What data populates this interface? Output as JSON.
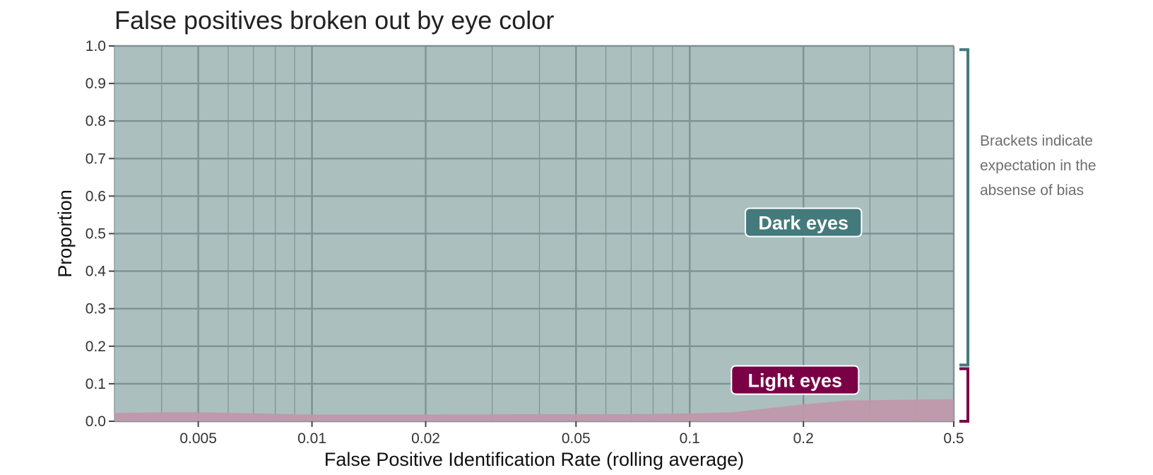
{
  "chart_data": {
    "type": "area",
    "title": "False positives broken out by eye color",
    "xlabel": "False Positive Identification Rate (rolling average)",
    "ylabel": "Proportion",
    "x_scale": "log",
    "xlim": [
      0.003,
      0.5
    ],
    "ylim": [
      0,
      1
    ],
    "x_ticks": [
      {
        "value": 0.005,
        "label": "0.005"
      },
      {
        "value": 0.01,
        "label": "0.01"
      },
      {
        "value": 0.02,
        "label": "0.02"
      },
      {
        "value": 0.05,
        "label": "0.05"
      },
      {
        "value": 0.1,
        "label": "0.1"
      },
      {
        "value": 0.2,
        "label": "0.2"
      },
      {
        "value": 0.5,
        "label": "0.5"
      }
    ],
    "y_ticks": [
      {
        "value": 0.0,
        "label": "0.0"
      },
      {
        "value": 0.1,
        "label": "0.1"
      },
      {
        "value": 0.2,
        "label": "0.2"
      },
      {
        "value": 0.3,
        "label": "0.3"
      },
      {
        "value": 0.4,
        "label": "0.4"
      },
      {
        "value": 0.5,
        "label": "0.5"
      },
      {
        "value": 0.6,
        "label": "0.6"
      },
      {
        "value": 0.7,
        "label": "0.7"
      },
      {
        "value": 0.8,
        "label": "0.8"
      },
      {
        "value": 0.9,
        "label": "0.9"
      },
      {
        "value": 1.0,
        "label": "1.0"
      }
    ],
    "x": [
      0.003,
      0.004,
      0.005,
      0.007,
      0.01,
      0.02,
      0.04,
      0.07,
      0.1,
      0.13,
      0.2,
      0.26,
      0.35,
      0.5
    ],
    "series": [
      {
        "name": "Light eyes",
        "color": "#7a0046",
        "values": [
          0.022,
          0.024,
          0.024,
          0.021,
          0.018,
          0.018,
          0.019,
          0.019,
          0.021,
          0.024,
          0.045,
          0.055,
          0.057,
          0.059
        ]
      },
      {
        "name": "Dark eyes",
        "color": "#447a7c",
        "values": [
          0.978,
          0.976,
          0.976,
          0.979,
          0.982,
          0.982,
          0.981,
          0.981,
          0.979,
          0.976,
          0.955,
          0.945,
          0.943,
          0.941
        ]
      }
    ],
    "series_labels": [
      {
        "text": "Dark eyes",
        "x": 0.2,
        "y": 0.53,
        "color": "#447a7c"
      },
      {
        "text": "Light eyes",
        "x": 0.19,
        "y": 0.11,
        "color": "#7a0046"
      }
    ],
    "brackets": [
      {
        "series": "Dark eyes",
        "from": 0.15,
        "to": 0.99,
        "color": "#447a7c"
      },
      {
        "series": "Light eyes",
        "from": 0.0,
        "to": 0.14,
        "color": "#7a0046"
      }
    ],
    "note_lines": [
      "Brackets indicate",
      "expectation in the",
      "absense of bias"
    ],
    "grid": true,
    "colors": {
      "panel_background": "#abbfbf",
      "grid_line": "#7e9293",
      "light_fill": "#c097ab",
      "axis_tick": "#444444"
    }
  }
}
